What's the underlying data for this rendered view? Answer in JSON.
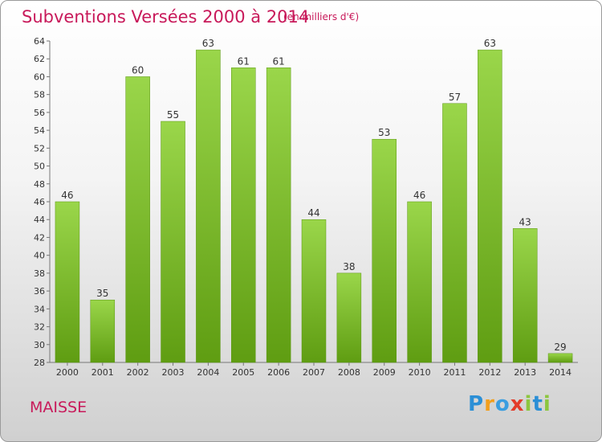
{
  "chart_data": {
    "type": "bar",
    "title": "Subventions Versées 2000 à 2014",
    "subtitle": "(en milliers d'€)",
    "categories": [
      "2000",
      "2001",
      "2002",
      "2003",
      "2004",
      "2005",
      "2006",
      "2007",
      "2008",
      "2009",
      "2010",
      "2011",
      "2012",
      "2013",
      "2014"
    ],
    "values": [
      46,
      35,
      60,
      55,
      63,
      61,
      61,
      44,
      38,
      53,
      46,
      57,
      63,
      43,
      29
    ],
    "ylim": [
      28,
      64
    ],
    "yticks": [
      28,
      30,
      32,
      34,
      36,
      38,
      40,
      42,
      44,
      46,
      48,
      50,
      52,
      54,
      56,
      58,
      60,
      62,
      64
    ],
    "grid": false,
    "bar_color": "#7cbf2a"
  },
  "commune": "MAISSE",
  "logo": {
    "letters": [
      {
        "ch": "P",
        "color": "#2b8fd6"
      },
      {
        "ch": "r",
        "color": "#f29f1d"
      },
      {
        "ch": "o",
        "color": "#3b9ee0"
      },
      {
        "ch": "x",
        "color": "#e33b2a"
      },
      {
        "ch": "i",
        "color": "#8cc63f"
      },
      {
        "ch": "t",
        "color": "#2b8fd6"
      },
      {
        "ch": "i",
        "color": "#8cc63f"
      }
    ]
  }
}
